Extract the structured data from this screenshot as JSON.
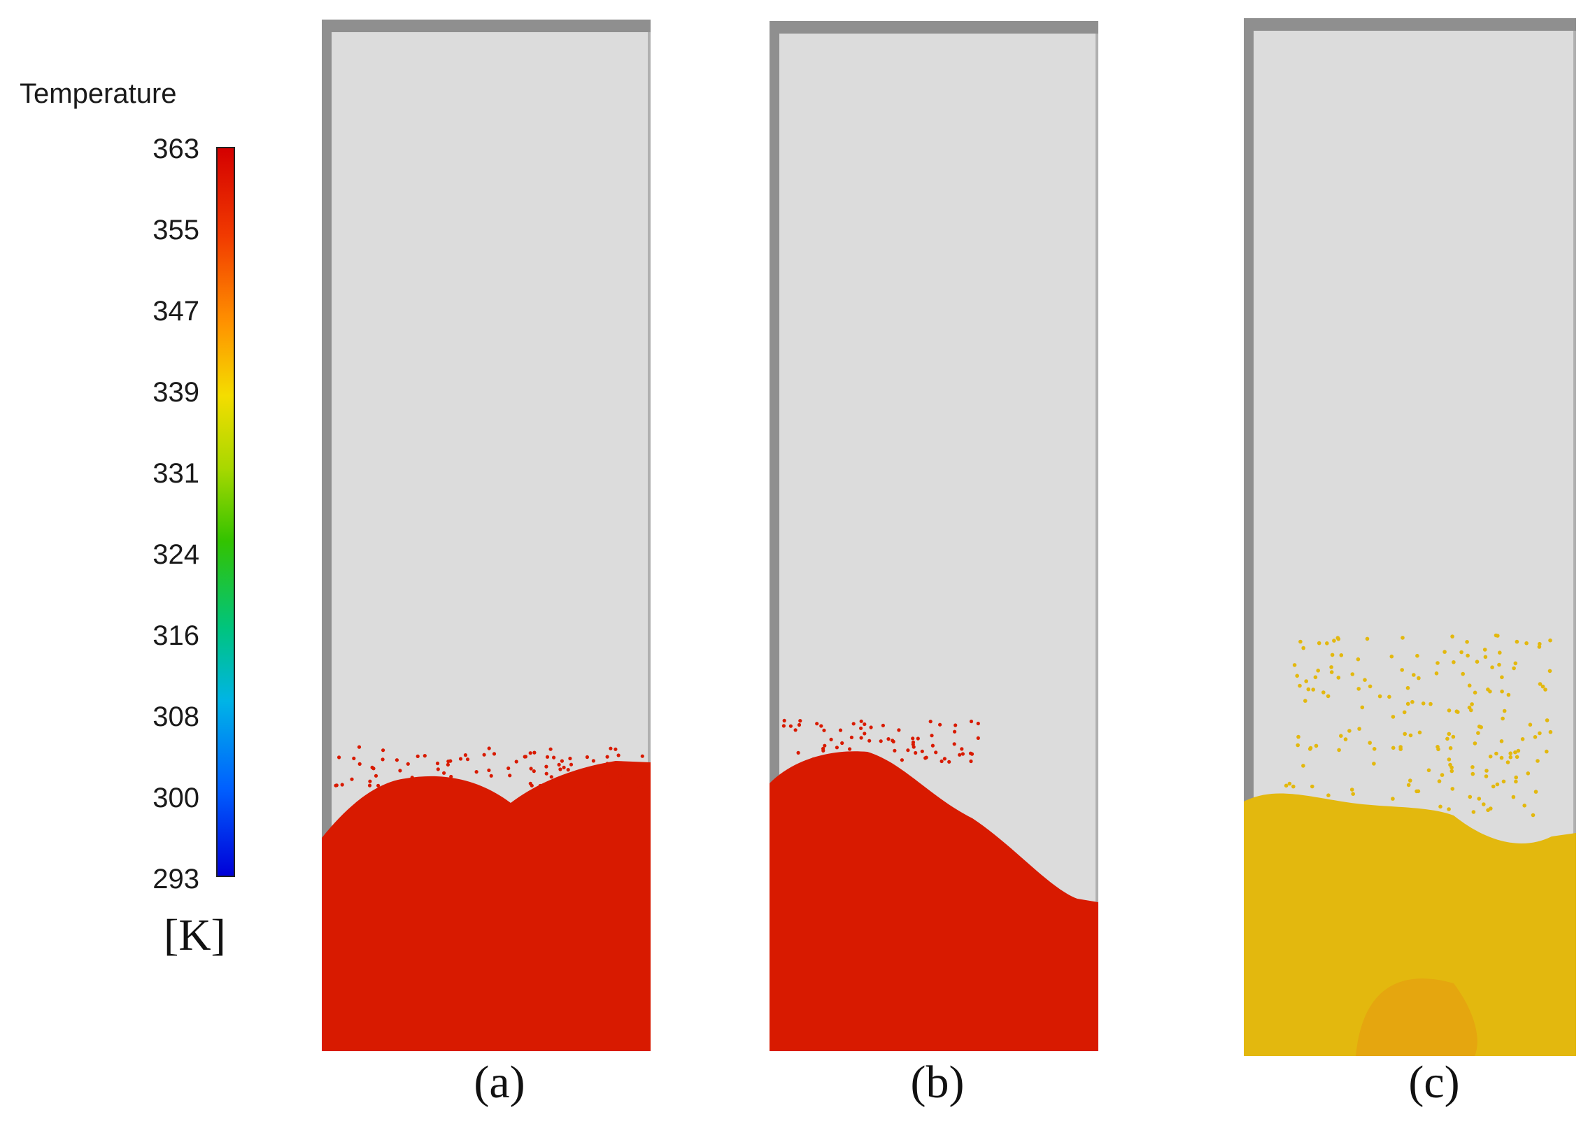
{
  "legend": {
    "title": "Temperature",
    "ticks": [
      "363",
      "355",
      "347",
      "339",
      "331",
      "324",
      "316",
      "308",
      "300",
      "293"
    ],
    "unit": "[K]",
    "colors": [
      "#d40000",
      "#f13a00",
      "#ff9200",
      "#f4dd00",
      "#a8d800",
      "#33c300",
      "#00c47e",
      "#00b4e6",
      "#0060ff",
      "#0000d8"
    ]
  },
  "panels": [
    {
      "caption": "(a)",
      "particle_color": "#d81a00"
    },
    {
      "caption": "(b)",
      "particle_color": "#d81a00"
    },
    {
      "caption": "(c)",
      "particle_color": "#e3b80e"
    }
  ]
}
